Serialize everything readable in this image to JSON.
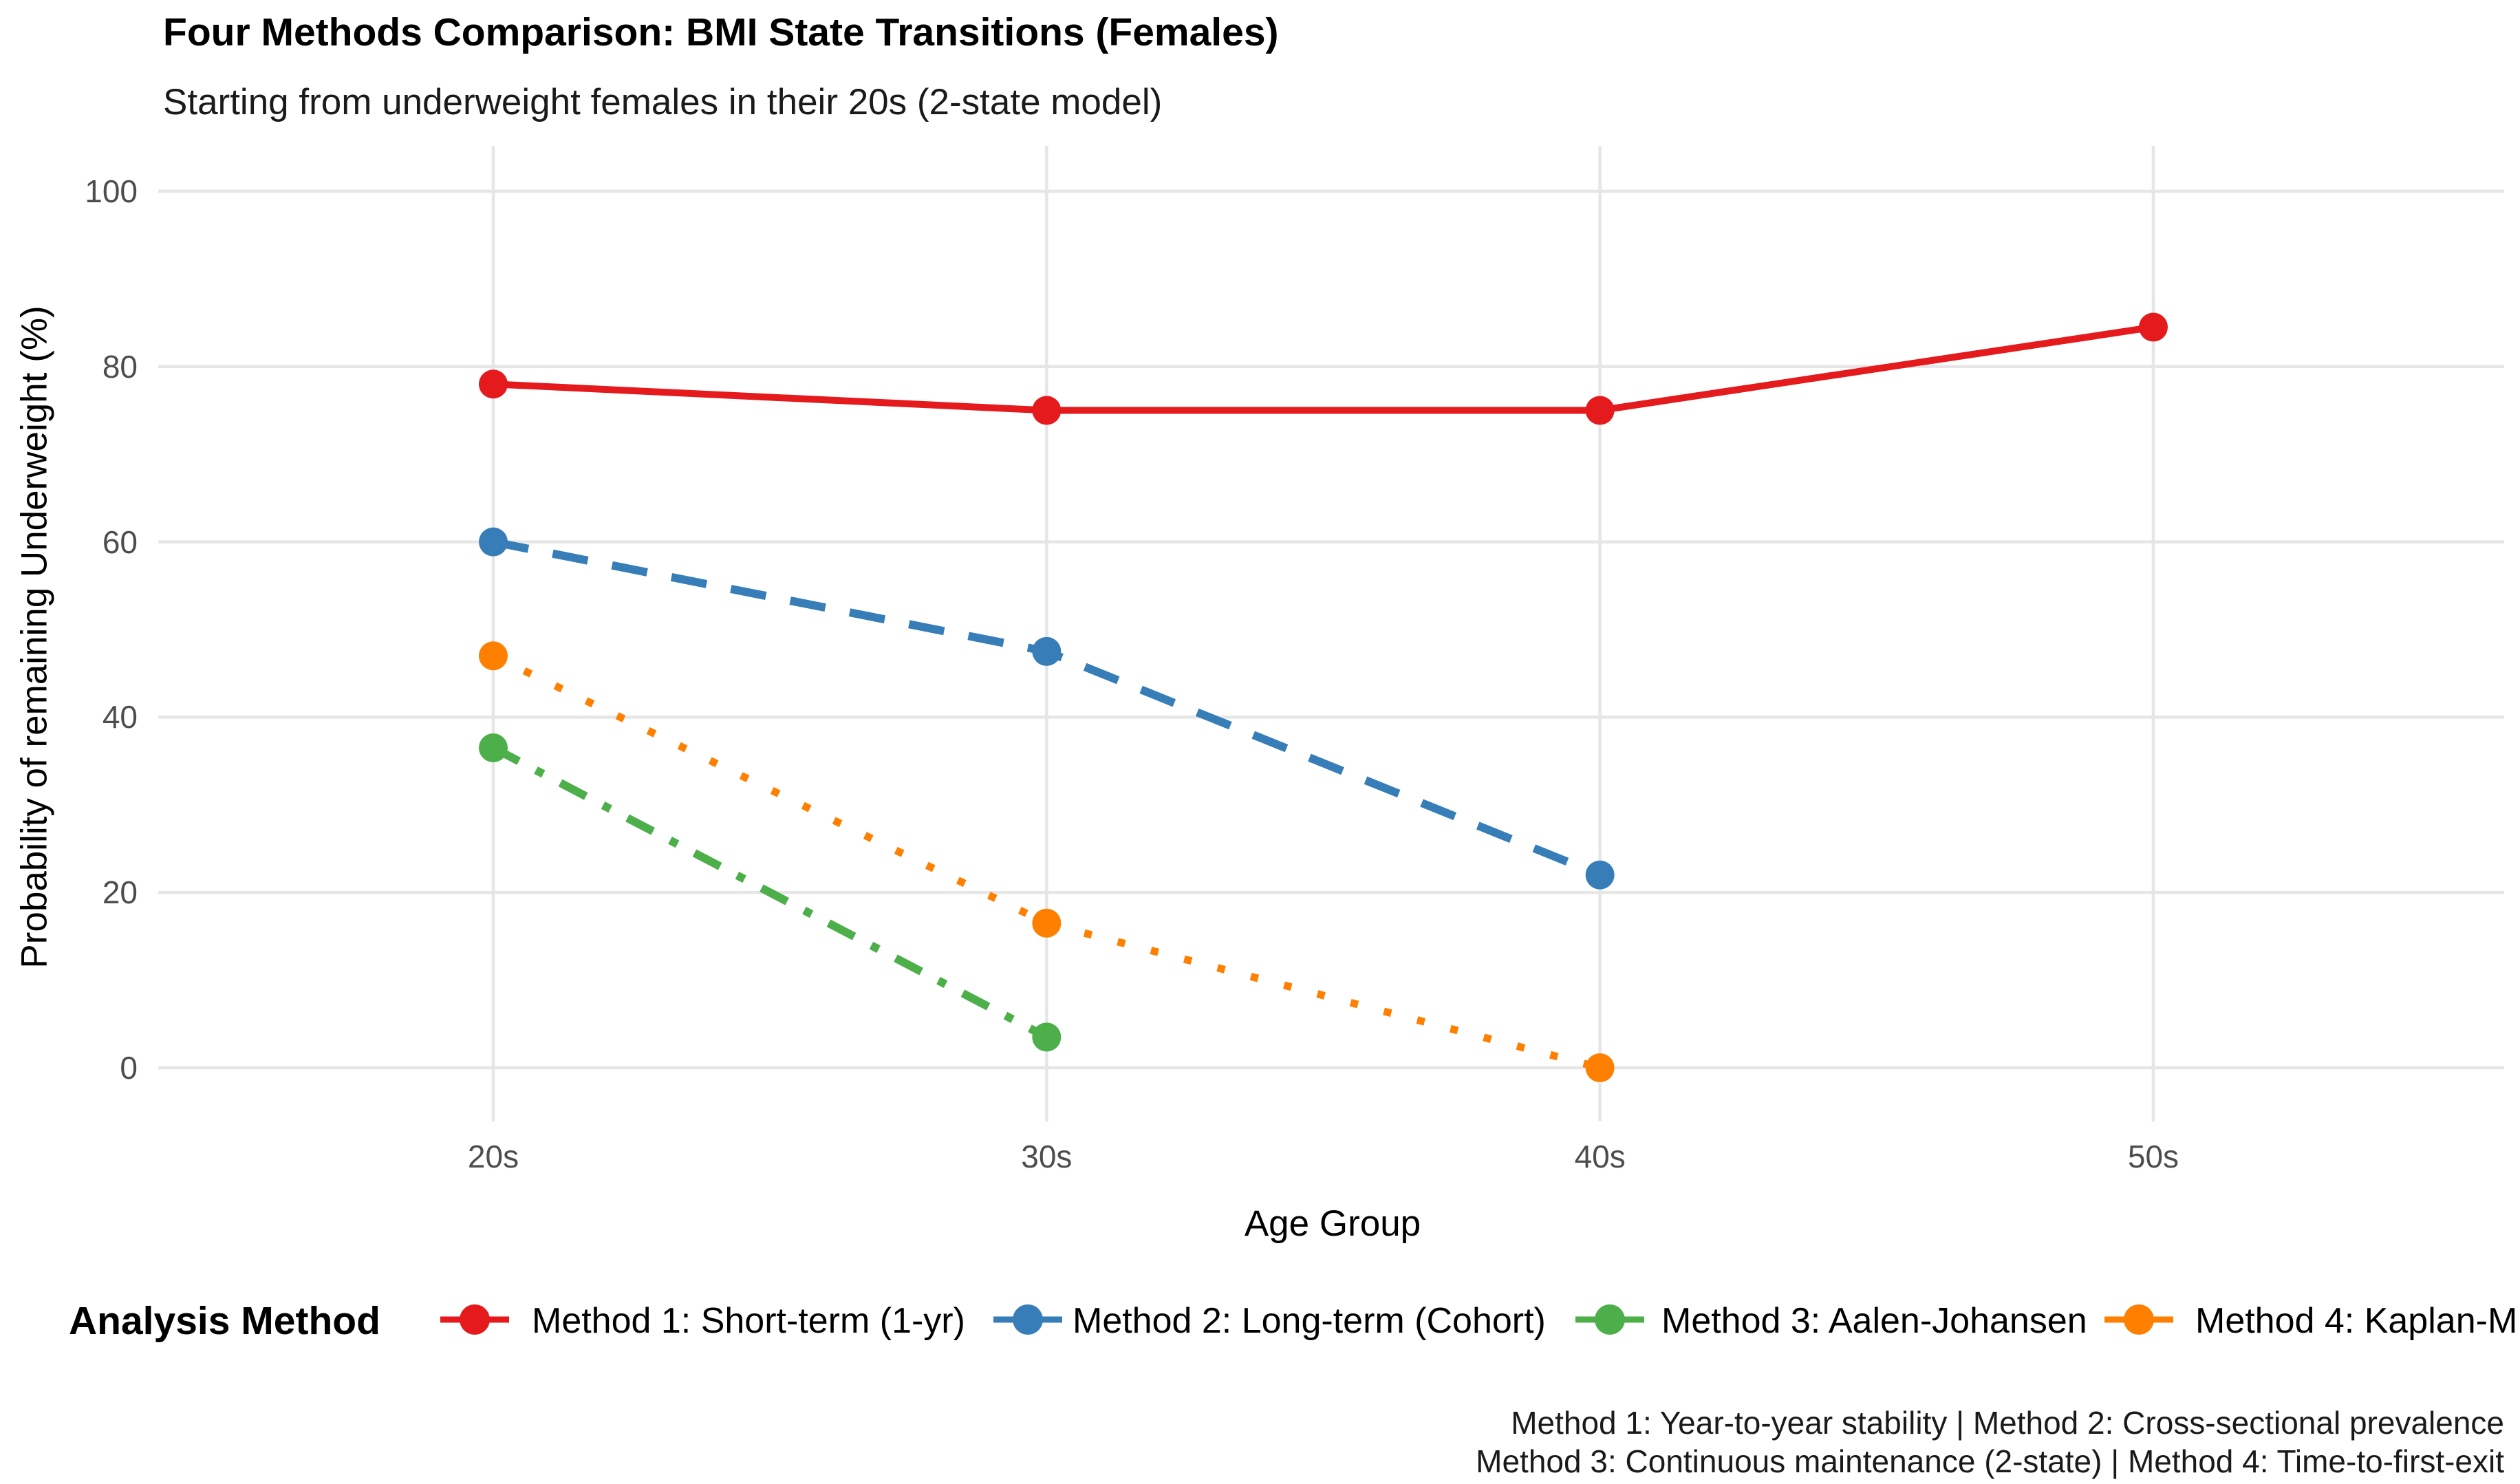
{
  "page": {
    "background": "#FFFFFF"
  },
  "chart_data": {
    "type": "line",
    "title": "Four Methods Comparison: BMI State Transitions (Females)",
    "subtitle": "Starting from underweight females in their 20s (2-state model)",
    "xlabel": "Age Group",
    "ylabel": "Probability of remaining Underweight (%)",
    "categories": [
      "20s",
      "30s",
      "40s",
      "50s"
    ],
    "yticks": [
      0,
      20,
      40,
      60,
      80,
      100
    ],
    "ylim": [
      0,
      100
    ],
    "grid": {
      "horizontal": true,
      "vertical": true,
      "minor": false,
      "color": "#E6E6E6"
    },
    "legend": {
      "title": "Analysis Method",
      "position": "bottom"
    },
    "series": [
      {
        "name": "Method 1: Short-term (1-yr)",
        "color": "#E41A1C",
        "linestyle": "solid",
        "marker": "circle",
        "values": [
          78,
          75,
          75,
          84.5
        ]
      },
      {
        "name": "Method 2: Long-term (Cohort)",
        "color": "#377EB8",
        "linestyle": "dashed",
        "marker": "circle",
        "values": [
          60,
          47.5,
          22,
          null
        ]
      },
      {
        "name": "Method 3: Aalen-Johansen",
        "color": "#4DAF4A",
        "linestyle": "dotdash",
        "marker": "circle",
        "values": [
          36.5,
          3.5,
          null,
          null
        ]
      },
      {
        "name": "Method 4: Kaplan-M",
        "color": "#FF7F00",
        "linestyle": "dotted",
        "marker": "circle",
        "values": [
          47,
          16.5,
          0,
          null
        ]
      }
    ],
    "caption_lines": [
      "Method 1: Year-to-year stability | Method 2: Cross-sectional prevalence",
      "Method 3: Continuous maintenance (2-state) | Method 4: Time-to-first-exit"
    ]
  },
  "colors": {
    "tick_label": "#4D4D4D",
    "text": "#000000",
    "grid": "#E6E6E6",
    "background": "#FFFFFF"
  }
}
